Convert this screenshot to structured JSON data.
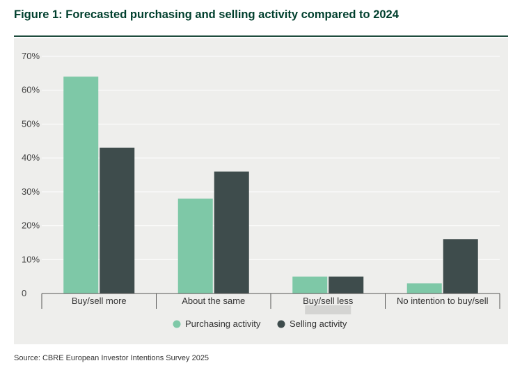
{
  "title": "Figure 1: Forecasted purchasing and selling activity compared to 2024",
  "source": "Source: CBRE European Investor Intentions Survey 2025",
  "colors": {
    "purchasing": "#7ec8a7",
    "selling": "#3e4c4c",
    "title": "#003f2d",
    "panel": "#eeeeec",
    "grid": "#ffffff",
    "highlight": "#d4d4d2"
  },
  "chart_data": {
    "type": "bar",
    "title": "Figure 1: Forecasted purchasing and selling activity compared to 2024",
    "xlabel": "",
    "ylabel": "",
    "ylim": [
      0,
      70
    ],
    "yticks": [
      0,
      10,
      20,
      30,
      40,
      50,
      60,
      70
    ],
    "ytick_labels": [
      "0",
      "10%",
      "20%",
      "30%",
      "40%",
      "50%",
      "60%",
      "70%"
    ],
    "categories": [
      "Buy/sell more",
      "About the same",
      "Buy/sell less",
      "No intention to buy/sell"
    ],
    "series": [
      {
        "name": "Purchasing activity",
        "values": [
          64,
          28,
          5,
          3
        ]
      },
      {
        "name": "Selling activity",
        "values": [
          43,
          36,
          5,
          16
        ]
      }
    ],
    "legend_position": "bottom-center",
    "grid": true
  }
}
